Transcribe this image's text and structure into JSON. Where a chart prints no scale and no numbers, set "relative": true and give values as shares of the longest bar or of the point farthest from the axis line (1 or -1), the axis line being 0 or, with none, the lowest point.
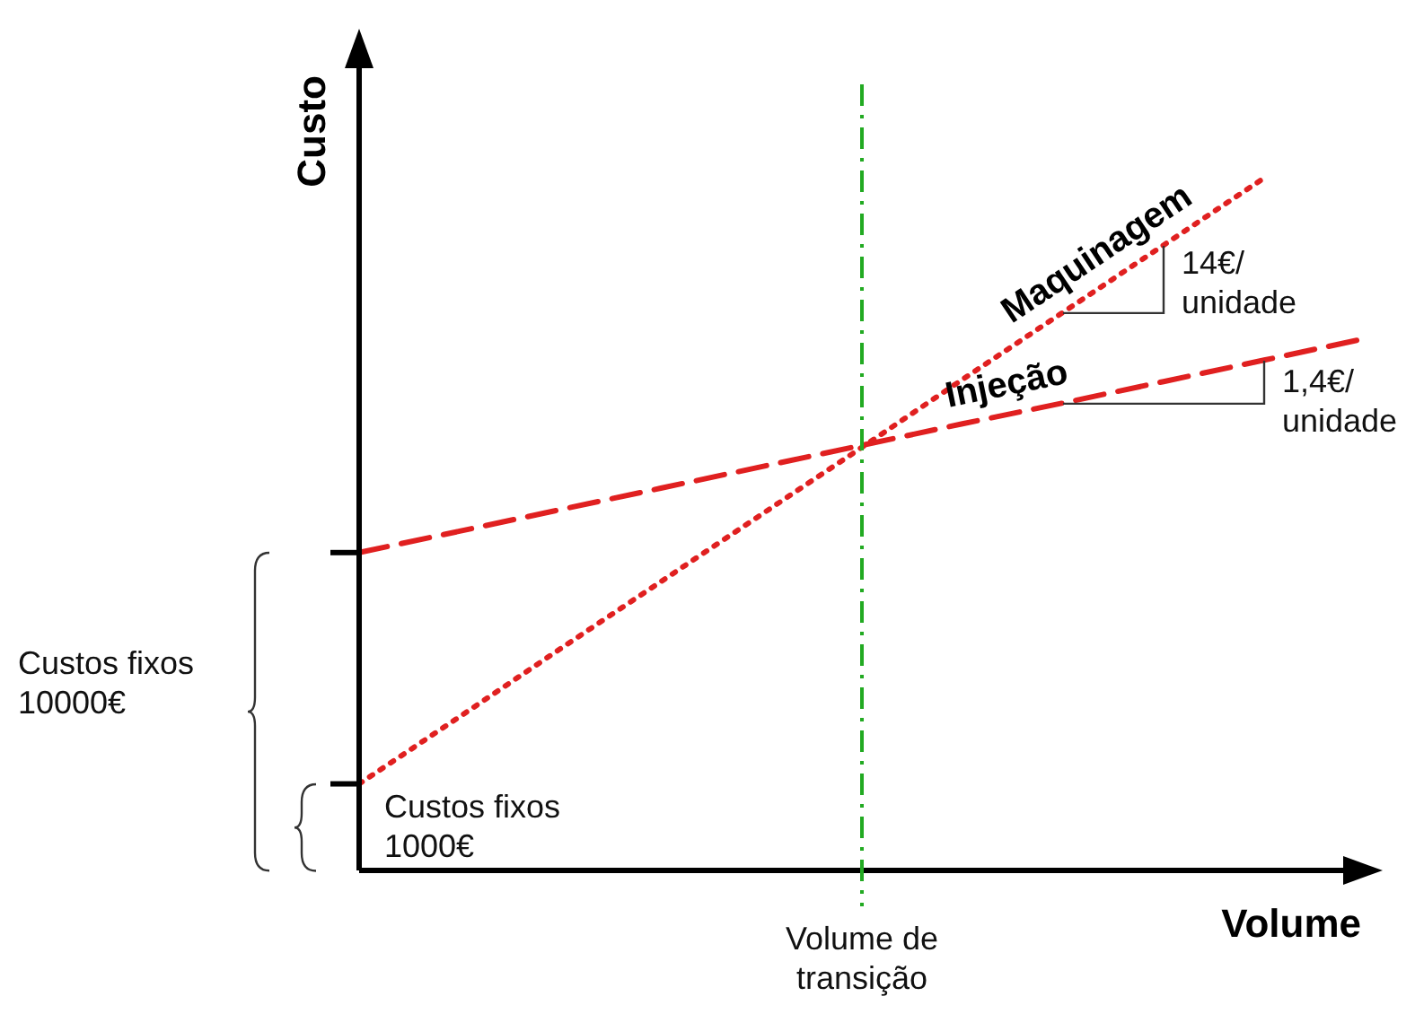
{
  "chart_data": {
    "type": "line",
    "relative": true,
    "xlabel": "Volume",
    "ylabel": "Custo",
    "categories": [
      null,
      null,
      null,
      null,
      null,
      null,
      null,
      null,
      null,
      null,
      null
    ],
    "series": [
      {
        "name": "Maquinagem",
        "color": "#e02020",
        "line_style": "dotted",
        "values": [
          0.125,
          0.222,
          0.32,
          0.417,
          0.514,
          0.611,
          0.709,
          0.806,
          0.903,
          1,
          null
        ]
      },
      {
        "name": "Injeção",
        "color": "#e02020",
        "line_style": "dashed",
        "values": [
          0.459,
          0.49,
          0.521,
          0.552,
          0.583,
          0.614,
          0.645,
          0.675,
          0.706,
          0.737,
          0.768
        ]
      }
    ],
    "annotations": [
      "Custos fixos 10000€",
      "Custos fixos 1000€",
      "14€/ unidade",
      "1,4€/ unidade",
      "Volume de transição"
    ],
    "legend": false,
    "marker": "none"
  }
}
